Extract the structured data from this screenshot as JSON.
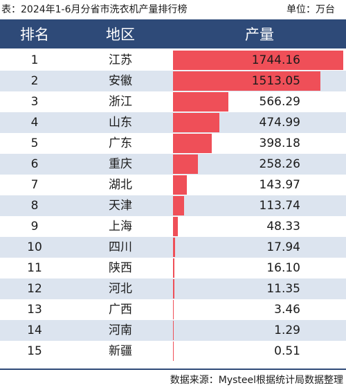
{
  "caption": {
    "title": "表：2024年1-6月分省市洗衣机产量排行榜",
    "unit": "单位：万台"
  },
  "header": {
    "rank": "排名",
    "region": "地区",
    "output": "产量"
  },
  "source": "数据来源：Mysteel根据统计局数据整理",
  "colors": {
    "header_bg": "#2e4a78",
    "bar": "#ef4f58",
    "alt_row": "#dce4ef"
  },
  "chart_data": {
    "type": "table",
    "columns": [
      "排名",
      "地区",
      "产量"
    ],
    "rows": [
      {
        "rank": "1",
        "region": "江苏",
        "value": 1744.16,
        "label": "1744.16"
      },
      {
        "rank": "2",
        "region": "安徽",
        "value": 1513.05,
        "label": "1513.05"
      },
      {
        "rank": "3",
        "region": "浙江",
        "value": 566.29,
        "label": "566.29"
      },
      {
        "rank": "4",
        "region": "山东",
        "value": 474.99,
        "label": "474.99"
      },
      {
        "rank": "5",
        "region": "广东",
        "value": 398.18,
        "label": "398.18"
      },
      {
        "rank": "6",
        "region": "重庆",
        "value": 258.26,
        "label": "258.26"
      },
      {
        "rank": "7",
        "region": "湖北",
        "value": 143.97,
        "label": "143.97"
      },
      {
        "rank": "8",
        "region": "天津",
        "value": 113.74,
        "label": "113.74"
      },
      {
        "rank": "9",
        "region": "上海",
        "value": 48.33,
        "label": "48.33"
      },
      {
        "rank": "10",
        "region": "四川",
        "value": 17.94,
        "label": "17.94"
      },
      {
        "rank": "11",
        "region": "陕西",
        "value": 16.1,
        "label": "16.10"
      },
      {
        "rank": "12",
        "region": "河北",
        "value": 11.35,
        "label": "11.35"
      },
      {
        "rank": "13",
        "region": "广西",
        "value": 3.46,
        "label": "3.46"
      },
      {
        "rank": "14",
        "region": "河南",
        "value": 1.29,
        "label": "1.29"
      },
      {
        "rank": "15",
        "region": "新疆",
        "value": 0.51,
        "label": "0.51"
      }
    ]
  }
}
